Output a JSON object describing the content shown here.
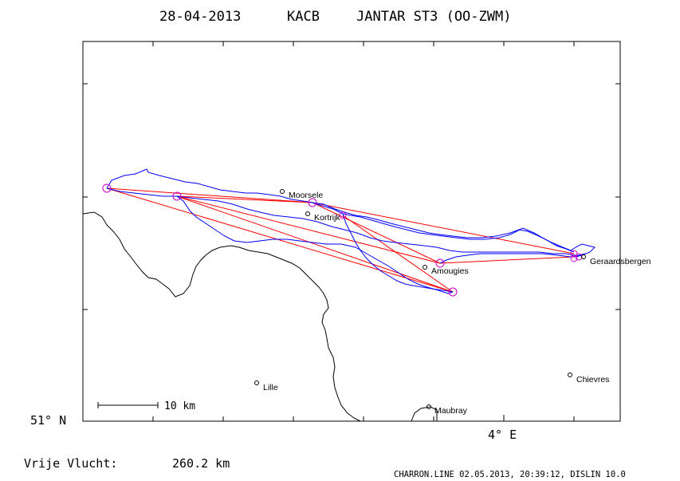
{
  "title": {
    "date": "28-04-2013",
    "club": "KACB",
    "glider": "JANTAR ST3 (OO-ZWM)"
  },
  "map": {
    "places": [
      {
        "name": "Moorsele"
      },
      {
        "name": "Kortrijk"
      },
      {
        "name": "Amougies"
      },
      {
        "name": "Geraardsbergen"
      },
      {
        "name": "Lille"
      },
      {
        "name": "Chievres"
      },
      {
        "name": "Maubray"
      }
    ],
    "scale_label": "10 km",
    "lat_label": "51° N",
    "lon_label": "4° E",
    "colors": {
      "border": "#000000",
      "track": "#0000ff",
      "task": "#ff0000",
      "turnpoint": "#cc00cc"
    }
  },
  "footer": {
    "distance_label": "Vrije Vlucht:",
    "distance_value": "260.2 km",
    "program": "CHARRON.LINE 02.05.2013, 20:39:12, DISLIN 10.0"
  }
}
